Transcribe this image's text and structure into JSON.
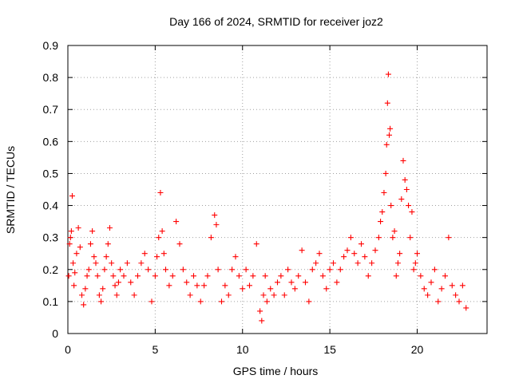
{
  "chart_data": {
    "type": "scatter",
    "title": "Day 166 of 2024, SRMTID for receiver joz2",
    "xlabel": "GPS time / hours",
    "ylabel": "SRMTID / TECUs",
    "xlim": [
      0,
      24
    ],
    "ylim": [
      0,
      0.9
    ],
    "x_ticks": [
      0,
      5,
      10,
      15,
      20
    ],
    "x_tick_labels": [
      "0",
      "5",
      "10",
      "15",
      "20"
    ],
    "y_ticks": [
      0,
      0.1,
      0.2,
      0.3,
      0.4,
      0.5,
      0.6,
      0.7,
      0.8,
      0.9
    ],
    "y_tick_labels": [
      "0",
      "0.1",
      "0.2",
      "0.3",
      "0.4",
      "0.5",
      "0.6",
      "0.7",
      "0.8",
      "0.9"
    ],
    "grid": true,
    "marker": "+",
    "marker_color": "#ff0000",
    "series": [
      {
        "name": "SRMTID",
        "x": [
          0.05,
          0.1,
          0.15,
          0.2,
          0.25,
          0.3,
          0.35,
          0.4,
          0.5,
          0.6,
          0.7,
          0.8,
          0.9,
          1.0,
          1.1,
          1.2,
          1.3,
          1.4,
          1.5,
          1.6,
          1.7,
          1.8,
          1.9,
          2.0,
          2.1,
          2.2,
          2.3,
          2.4,
          2.5,
          2.6,
          2.7,
          2.8,
          2.9,
          3.0,
          3.2,
          3.4,
          3.6,
          3.8,
          4.0,
          4.2,
          4.4,
          4.6,
          4.8,
          5.0,
          5.1,
          5.2,
          5.3,
          5.4,
          5.5,
          5.6,
          5.8,
          6.0,
          6.2,
          6.4,
          6.6,
          6.8,
          7.0,
          7.2,
          7.4,
          7.6,
          7.8,
          8.0,
          8.2,
          8.4,
          8.5,
          8.6,
          8.8,
          9.0,
          9.2,
          9.4,
          9.6,
          9.8,
          10.0,
          10.2,
          10.4,
          10.6,
          10.8,
          11.0,
          11.1,
          11.2,
          11.3,
          11.4,
          11.6,
          11.8,
          12.0,
          12.2,
          12.4,
          12.6,
          12.8,
          13.0,
          13.2,
          13.4,
          13.6,
          13.8,
          14.0,
          14.2,
          14.4,
          14.6,
          14.8,
          15.0,
          15.2,
          15.4,
          15.6,
          15.8,
          16.0,
          16.2,
          16.4,
          16.6,
          16.8,
          17.0,
          17.2,
          17.4,
          17.6,
          17.8,
          17.9,
          18.0,
          18.1,
          18.2,
          18.25,
          18.3,
          18.35,
          18.4,
          18.45,
          18.5,
          18.6,
          18.7,
          18.8,
          18.9,
          19.0,
          19.1,
          19.2,
          19.3,
          19.4,
          19.5,
          19.6,
          19.7,
          19.8,
          19.9,
          20.0,
          20.2,
          20.4,
          20.6,
          20.8,
          21.0,
          21.2,
          21.4,
          21.6,
          21.8,
          22.0,
          22.2,
          22.4,
          22.6,
          22.8
        ],
        "y": [
          0.18,
          0.28,
          0.3,
          0.32,
          0.43,
          0.22,
          0.15,
          0.19,
          0.25,
          0.33,
          0.27,
          0.12,
          0.09,
          0.14,
          0.18,
          0.2,
          0.28,
          0.32,
          0.24,
          0.22,
          0.18,
          0.12,
          0.1,
          0.14,
          0.2,
          0.24,
          0.28,
          0.33,
          0.22,
          0.18,
          0.15,
          0.12,
          0.16,
          0.2,
          0.18,
          0.22,
          0.16,
          0.12,
          0.18,
          0.22,
          0.25,
          0.2,
          0.1,
          0.18,
          0.24,
          0.3,
          0.44,
          0.32,
          0.25,
          0.2,
          0.15,
          0.18,
          0.35,
          0.28,
          0.2,
          0.16,
          0.12,
          0.18,
          0.15,
          0.1,
          0.15,
          0.18,
          0.3,
          0.37,
          0.34,
          0.2,
          0.1,
          0.15,
          0.12,
          0.2,
          0.24,
          0.18,
          0.14,
          0.2,
          0.15,
          0.18,
          0.28,
          0.07,
          0.04,
          0.12,
          0.18,
          0.1,
          0.14,
          0.12,
          0.16,
          0.18,
          0.12,
          0.2,
          0.16,
          0.14,
          0.18,
          0.26,
          0.16,
          0.1,
          0.2,
          0.22,
          0.25,
          0.18,
          0.14,
          0.2,
          0.22,
          0.16,
          0.2,
          0.24,
          0.26,
          0.3,
          0.25,
          0.22,
          0.28,
          0.24,
          0.18,
          0.22,
          0.26,
          0.3,
          0.35,
          0.38,
          0.44,
          0.5,
          0.59,
          0.72,
          0.81,
          0.62,
          0.64,
          0.4,
          0.3,
          0.32,
          0.18,
          0.22,
          0.25,
          0.42,
          0.54,
          0.48,
          0.45,
          0.4,
          0.3,
          0.38,
          0.2,
          0.22,
          0.25,
          0.18,
          0.14,
          0.12,
          0.16,
          0.2,
          0.1,
          0.14,
          0.18,
          0.3,
          0.15,
          0.12,
          0.1,
          0.15,
          0.08
        ]
      }
    ]
  }
}
